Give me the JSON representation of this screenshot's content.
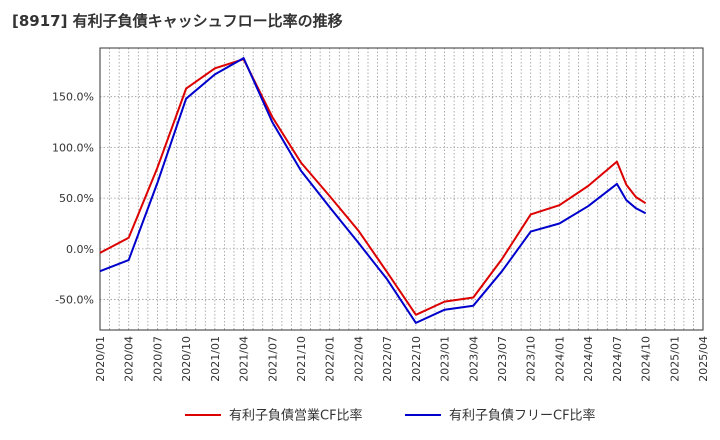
{
  "chart_data": {
    "type": "line",
    "title": "[8917]  有利子負債キャッシュフロー比率の推移",
    "xlabel": "",
    "ylabel": "",
    "x": [
      "2020/01",
      "2020/04",
      "2020/07",
      "2020/10",
      "2021/01",
      "2021/04",
      "2021/07",
      "2021/10",
      "2022/01",
      "2022/04",
      "2022/07",
      "2022/10",
      "2023/01",
      "2023/04",
      "2023/07",
      "2023/10",
      "2024/01",
      "2024/04",
      "2024/07",
      "2024/10"
    ],
    "x_ticks": [
      "2020/01",
      "2020/04",
      "2020/07",
      "2020/10",
      "2021/01",
      "2021/04",
      "2021/07",
      "2021/10",
      "2022/01",
      "2022/04",
      "2022/07",
      "2022/10",
      "2023/01",
      "2023/04",
      "2023/07",
      "2023/10",
      "2024/01",
      "2024/04",
      "2024/07",
      "2024/10",
      "2025/01",
      "2025/04"
    ],
    "y_ticks": [
      -50,
      0,
      50,
      100,
      150
    ],
    "y_tick_labels": [
      "-50.0%",
      "0.0%",
      "50.0%",
      "100.0%",
      "150.0%"
    ],
    "ylim": [
      -80,
      198
    ],
    "grid": true,
    "legend_position": "bottom",
    "series": [
      {
        "name": "有利子負債営業CF比率",
        "color": "#dd0000",
        "points": [
          [
            "2020/01",
            -4
          ],
          [
            "2020/04",
            11
          ],
          [
            "2020/07",
            80
          ],
          [
            "2020/10",
            158
          ],
          [
            "2021/01",
            178
          ],
          [
            "2021/04",
            187
          ],
          [
            "2021/07",
            130
          ],
          [
            "2021/10",
            85
          ],
          [
            "2022/01",
            52
          ],
          [
            "2022/04",
            18
          ],
          [
            "2022/07",
            -23
          ],
          [
            "2022/10",
            -65
          ],
          [
            "2023/01",
            -52
          ],
          [
            "2023/04",
            -48
          ],
          [
            "2023/07",
            -10
          ],
          [
            "2023/10",
            34
          ],
          [
            "2024/01",
            43
          ],
          [
            "2024/04",
            62
          ],
          [
            "2024/07",
            86
          ],
          [
            "2024/08",
            63
          ],
          [
            "2024/09",
            51
          ],
          [
            "2024/10",
            45
          ]
        ]
      },
      {
        "name": "有利子負債フリーCF比率",
        "color": "#0000cc",
        "points": [
          [
            "2020/01",
            -22
          ],
          [
            "2020/04",
            -11
          ],
          [
            "2020/07",
            65
          ],
          [
            "2020/10",
            148
          ],
          [
            "2021/01",
            172
          ],
          [
            "2021/04",
            188
          ],
          [
            "2021/07",
            125
          ],
          [
            "2021/10",
            77
          ],
          [
            "2022/01",
            41
          ],
          [
            "2022/04",
            6
          ],
          [
            "2022/07",
            -30
          ],
          [
            "2022/10",
            -73
          ],
          [
            "2023/01",
            -60
          ],
          [
            "2023/04",
            -56
          ],
          [
            "2023/07",
            -22
          ],
          [
            "2023/10",
            17
          ],
          [
            "2024/01",
            25
          ],
          [
            "2024/04",
            42
          ],
          [
            "2024/07",
            64
          ],
          [
            "2024/08",
            48
          ],
          [
            "2024/09",
            40
          ],
          [
            "2024/10",
            35
          ]
        ]
      }
    ]
  }
}
